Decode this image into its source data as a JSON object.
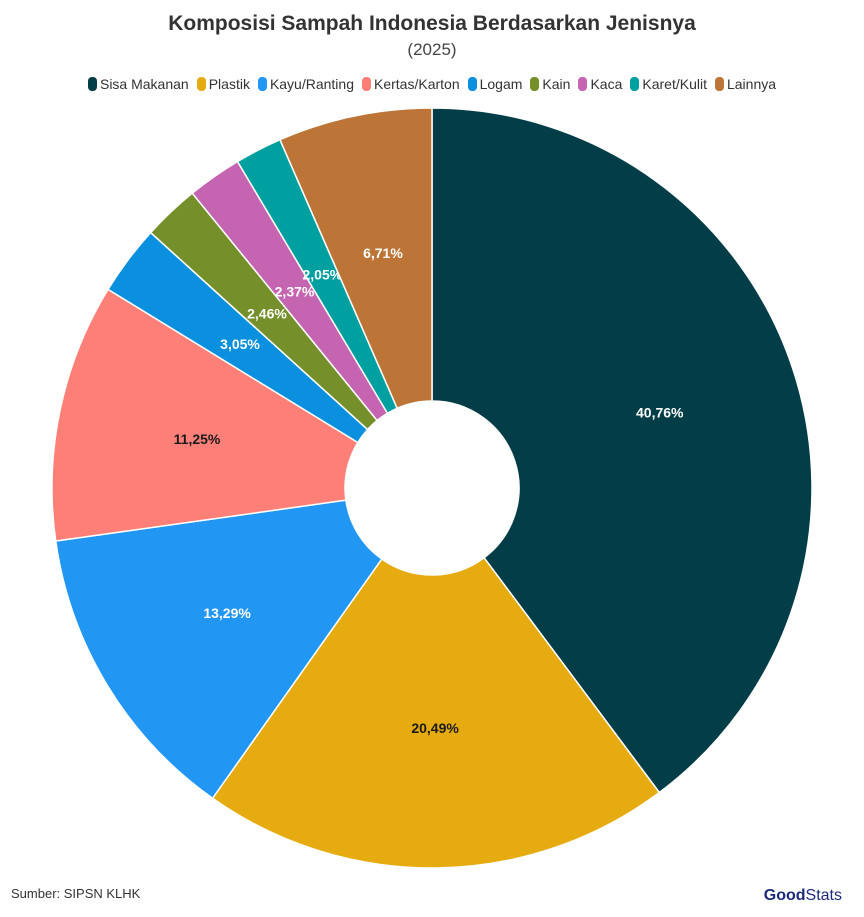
{
  "chart_data": {
    "type": "pie",
    "variant": "donut",
    "title": "Komposisi Sampah Indonesia Berdasarkan Jenisnya",
    "subtitle": "(2025)",
    "legend_position": "top",
    "categories": [
      "Sisa Makanan",
      "Plastik",
      "Kayu/Ranting",
      "Kertas/Karton",
      "Logam",
      "Kain",
      "Kaca",
      "Karet/Kulit",
      "Lainnya"
    ],
    "values": [
      40.76,
      20.49,
      13.29,
      11.25,
      3.05,
      2.46,
      2.37,
      2.05,
      6.71
    ],
    "labels": [
      "40,76%",
      "20,49%",
      "13,29%",
      "11,25%",
      "3,05%",
      "2,46%",
      "2,37%",
      "2,05%",
      "6,71%"
    ],
    "colors": [
      "#033d48",
      "#e6ab10",
      "#2196f3",
      "#fd7f78",
      "#0a90de",
      "#75902a",
      "#c565b2",
      "#00a0a0",
      "#bc7537"
    ],
    "label_colors": [
      "#ffffff",
      "#1a1a1a",
      "#ffffff",
      "#1a1a1a",
      "#ffffff",
      "#ffffff",
      "#ffffff",
      "#ffffff",
      "#ffffff"
    ]
  },
  "source": "Sumber: SIPSN KLHK",
  "logo": {
    "part1": "Good",
    "part2": "Stats"
  }
}
